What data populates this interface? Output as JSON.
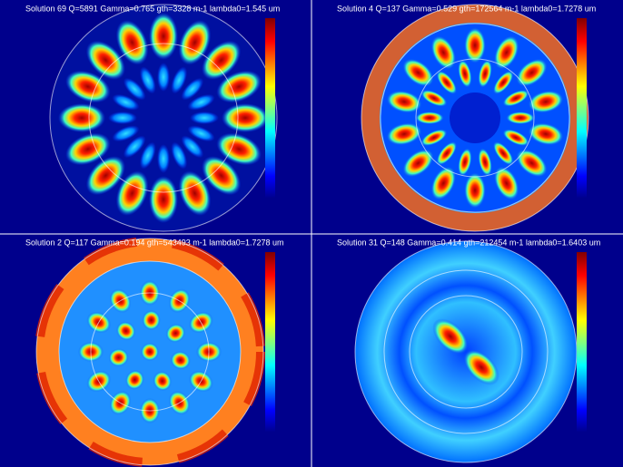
{
  "panels": [
    {
      "title": "Solution 69 Q=5891 Gamma=0.765 gth=3328 m-1 lambda0=1.545 um"
    },
    {
      "title": "Solution 4 Q=137 Gamma=0.529 gth=172564 m-1 lambda0=1.7278 um"
    },
    {
      "title": "Solution 2 Q=117 Gamma=0.194 gth=543493 m-1 lambda0=1.7278 um"
    },
    {
      "title": "Solution 31 Q=148 Gamma=0.414 gth=212454 m-1 lambda0=1.6403 um"
    }
  ]
}
